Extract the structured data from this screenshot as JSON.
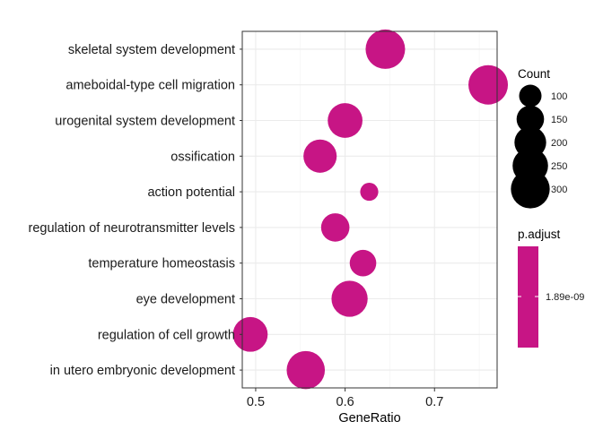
{
  "chart_data": {
    "type": "scatter",
    "xlabel": "GeneRatio",
    "xlim": [
      0.485,
      0.77
    ],
    "x_ticks": [
      0.5,
      0.6,
      0.7
    ],
    "x_tick_labels": [
      "0.5",
      "0.6",
      "0.7"
    ],
    "grid": true,
    "legend_placement": "right",
    "point_color": "#C71585",
    "categories": [
      "skeletal system development",
      "ameboidal-type cell migration",
      "urogenital system development",
      "ossification",
      "action potential",
      "regulation of neurotransmitter levels",
      "temperature homeostasis",
      "eye development",
      "regulation of cell growth",
      "in utero embryonic development"
    ],
    "points": [
      {
        "category": "skeletal system development",
        "x": 0.645,
        "count": 310
      },
      {
        "category": "ameboidal-type cell migration",
        "x": 0.76,
        "count": 310
      },
      {
        "category": "urogenital system development",
        "x": 0.6,
        "count": 240
      },
      {
        "category": "ossification",
        "x": 0.572,
        "count": 220
      },
      {
        "category": "action potential",
        "x": 0.627,
        "count": 65
      },
      {
        "category": "regulation of neurotransmitter levels",
        "x": 0.589,
        "count": 160
      },
      {
        "category": "temperature homeostasis",
        "x": 0.62,
        "count": 140
      },
      {
        "category": "eye development",
        "x": 0.605,
        "count": 260
      },
      {
        "category": "regulation of cell growth",
        "x": 0.494,
        "count": 240
      },
      {
        "category": "in utero embryonic development",
        "x": 0.556,
        "count": 290
      }
    ],
    "legend_size": {
      "title": "Count",
      "breaks": [
        100,
        150,
        200,
        250,
        300
      ],
      "labels": [
        "100",
        "150",
        "200",
        "250",
        "300"
      ]
    },
    "legend_color": {
      "title": "p.adjust",
      "label": "1.89e-09",
      "color": "#C71585"
    }
  }
}
